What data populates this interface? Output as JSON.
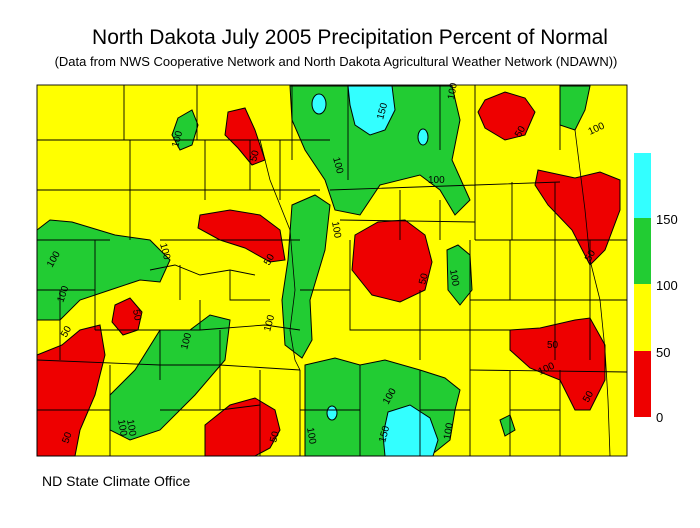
{
  "title": "North Dakota July 2005 Precipitation Percent of Normal",
  "subtitle": "(Data from NWS Cooperative Network and North Dakota Agricultural Weather Network (NDAWN))",
  "footer": "ND State Climate Office",
  "colors": {
    "below_50": "#ee0000",
    "50_to_100": "#ffff00",
    "100_to_150": "#22cc33",
    "above_150": "#33ffff",
    "county_lines": "#000000"
  },
  "legend": {
    "ticks": [
      "0",
      "50",
      "100",
      "150"
    ],
    "bins": [
      {
        "range": "0-50",
        "color": "#ee0000"
      },
      {
        "range": "50-100",
        "color": "#ffff00"
      },
      {
        "range": "100-150",
        "color": "#22cc33"
      },
      {
        "range": ">150",
        "color": "#33ffff"
      }
    ]
  },
  "contour_labels": [
    "100",
    "150",
    "50",
    "100",
    "100",
    "50",
    "100",
    "100",
    "100",
    "50",
    "100",
    "100",
    "100",
    "100",
    "100",
    "50",
    "50",
    "100",
    "50",
    "100",
    "50",
    "100",
    "50",
    "50",
    "100",
    "50",
    "100",
    "100",
    "150",
    "100",
    "50"
  ]
}
